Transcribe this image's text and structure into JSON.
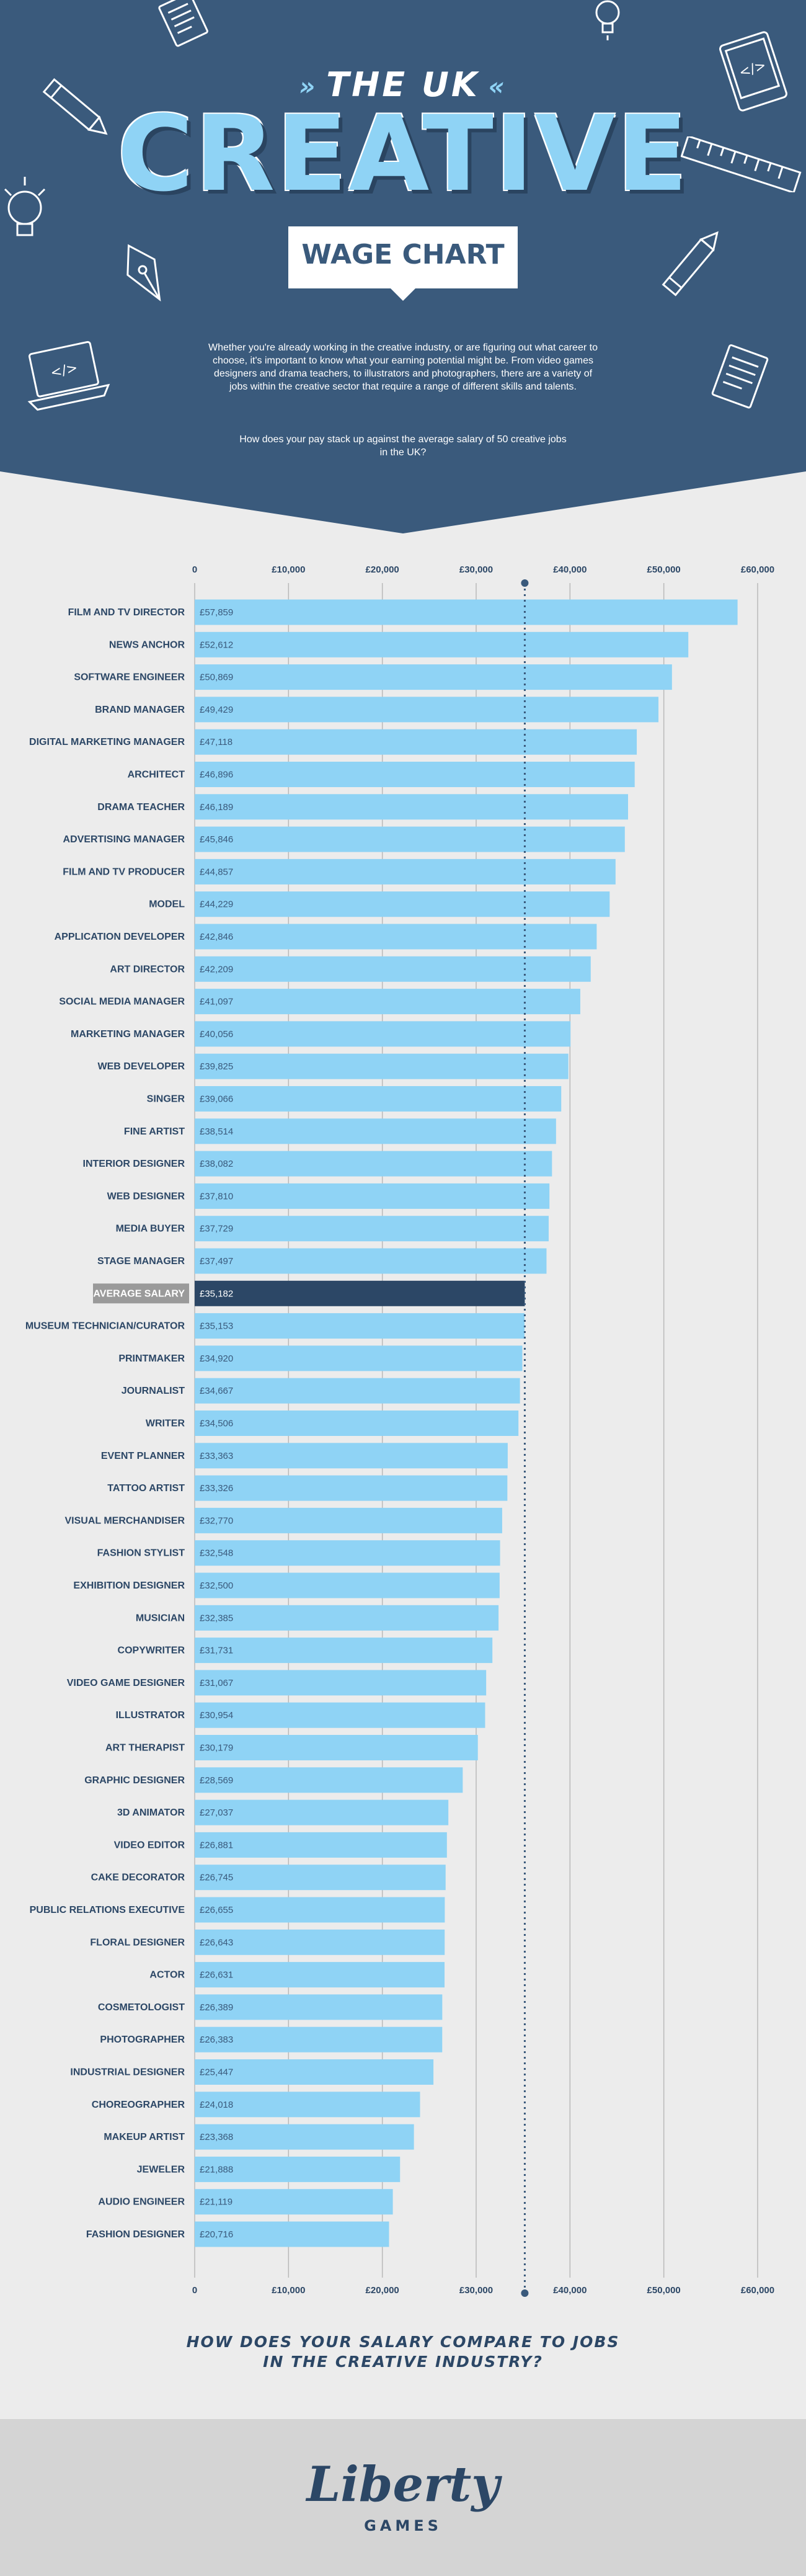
{
  "header": {
    "pre_title": "THE UK",
    "title": "CREATIVE",
    "banner": "WAGE CHART",
    "intro": "Whether you're already working in the creative industry, or are figuring out what career to choose, it's important to know what your earning potential might be. From video games designers and drama teachers, to illustrators and photographers, there are a variety of jobs within the creative sector that require a range of different skills and talents.",
    "question": "How does your pay stack up against the average salary of 50 creative jobs in the UK?"
  },
  "chart_data": {
    "type": "bar",
    "orientation": "horizontal",
    "title": "",
    "xlabel": "",
    "ylabel": "",
    "xlim": [
      0,
      60000
    ],
    "ticks": [
      "0",
      "£10,000",
      "£20,000",
      "£30,000",
      "£40,000",
      "£50,000",
      "£60,000"
    ],
    "reference_line": 35182,
    "categories": [
      "FILM AND TV DIRECTOR",
      "NEWS ANCHOR",
      "SOFTWARE ENGINEER",
      "BRAND MANAGER",
      "DIGITAL MARKETING MANAGER",
      "ARCHITECT",
      "DRAMA TEACHER",
      "ADVERTISING MANAGER",
      "FILM AND TV PRODUCER",
      "MODEL",
      "APPLICATION DEVELOPER",
      "ART DIRECTOR",
      "SOCIAL MEDIA MANAGER",
      "MARKETING MANAGER",
      "WEB DEVELOPER",
      "SINGER",
      "FINE ARTIST",
      "INTERIOR DESIGNER",
      "WEB DESIGNER",
      "MEDIA BUYER",
      "STAGE MANAGER",
      "AVERAGE SALARY",
      "MUSEUM TECHNICIAN/CURATOR",
      "PRINTMAKER",
      "JOURNALIST",
      "WRITER",
      "EVENT PLANNER",
      "TATTOO ARTIST",
      "VISUAL MERCHANDISER",
      "FASHION STYLIST",
      "EXHIBITION DESIGNER",
      "MUSICIAN",
      "COPYWRITER",
      "VIDEO GAME DESIGNER",
      "ILLUSTRATOR",
      "ART THERAPIST",
      "GRAPHIC DESIGNER",
      "3D ANIMATOR",
      "VIDEO EDITOR",
      "CAKE DECORATOR",
      "PUBLIC RELATIONS EXECUTIVE",
      "FLORAL DESIGNER",
      "ACTOR",
      "COSMETOLOGIST",
      "PHOTOGRAPHER",
      "INDUSTRIAL DESIGNER",
      "CHOREOGRAPHER",
      "MAKEUP ARTIST",
      "JEWELER",
      "AUDIO ENGINEER",
      "FASHION DESIGNER"
    ],
    "values": [
      57859,
      52612,
      50869,
      49429,
      47118,
      46896,
      46189,
      45846,
      44857,
      44229,
      42846,
      42209,
      41097,
      40056,
      39825,
      39066,
      38514,
      38082,
      37810,
      37729,
      37497,
      35182,
      35153,
      34920,
      34667,
      34506,
      33363,
      33326,
      32770,
      32548,
      32500,
      32385,
      31731,
      31067,
      30954,
      30179,
      28569,
      27037,
      26881,
      26745,
      26655,
      26643,
      26631,
      26389,
      26383,
      25447,
      24018,
      23368,
      21888,
      21119,
      20716
    ],
    "labels": [
      "£57,859",
      "£52,612",
      "£50,869",
      "£49,429",
      "£47,118",
      "£46,896",
      "£46,189",
      "£45,846",
      "£44,857",
      "£44,229",
      "£42,846",
      "£42,209",
      "£41,097",
      "£40,056",
      "£39,825",
      "£39,066",
      "£38,514",
      "£38,082",
      "£37,810",
      "£37,729",
      "£37,497",
      "£35,182",
      "£35,153",
      "£34,920",
      "£34,667",
      "£34,506",
      "£33,363",
      "£33,326",
      "£32,770",
      "£32,548",
      "£32,500",
      "£32,385",
      "£31,731",
      "£31,067",
      "£30,954",
      "£30,179",
      "£28,569",
      "£27,037",
      "£26,881",
      "£26,745",
      "£26,655",
      "£26,643",
      "£26,631",
      "£26,389",
      "£26,383",
      "£25,447",
      "£24,018",
      "£23,368",
      "£21,888",
      "£21,119",
      "£20,716"
    ],
    "highlight_index": 21,
    "grid": true,
    "colors": {
      "bar": "#8fd3f5",
      "highlight_bar": "#2c4766",
      "highlight_label_bg": "#9a9a9a",
      "bar_label": "#3a5a7c",
      "category_label": "#2c4766",
      "grid": "#b9b9b9",
      "reference_line": "#3a5a7c"
    }
  },
  "footer": {
    "question": "HOW DOES YOUR SALARY COMPARE TO JOBS IN THE CREATIVE INDUSTRY?",
    "logo": "Liberty",
    "logo_sub": "GAMES"
  },
  "colors": {
    "header_bg": "#3a5a7c",
    "accent": "#8fd3f5",
    "footer_bg": "#d4d4d4"
  },
  "icons": [
    "document-icon",
    "pencil-icon",
    "lightbulb-icon",
    "pen-nib-icon",
    "laptop-code-icon",
    "ruler-icon"
  ]
}
